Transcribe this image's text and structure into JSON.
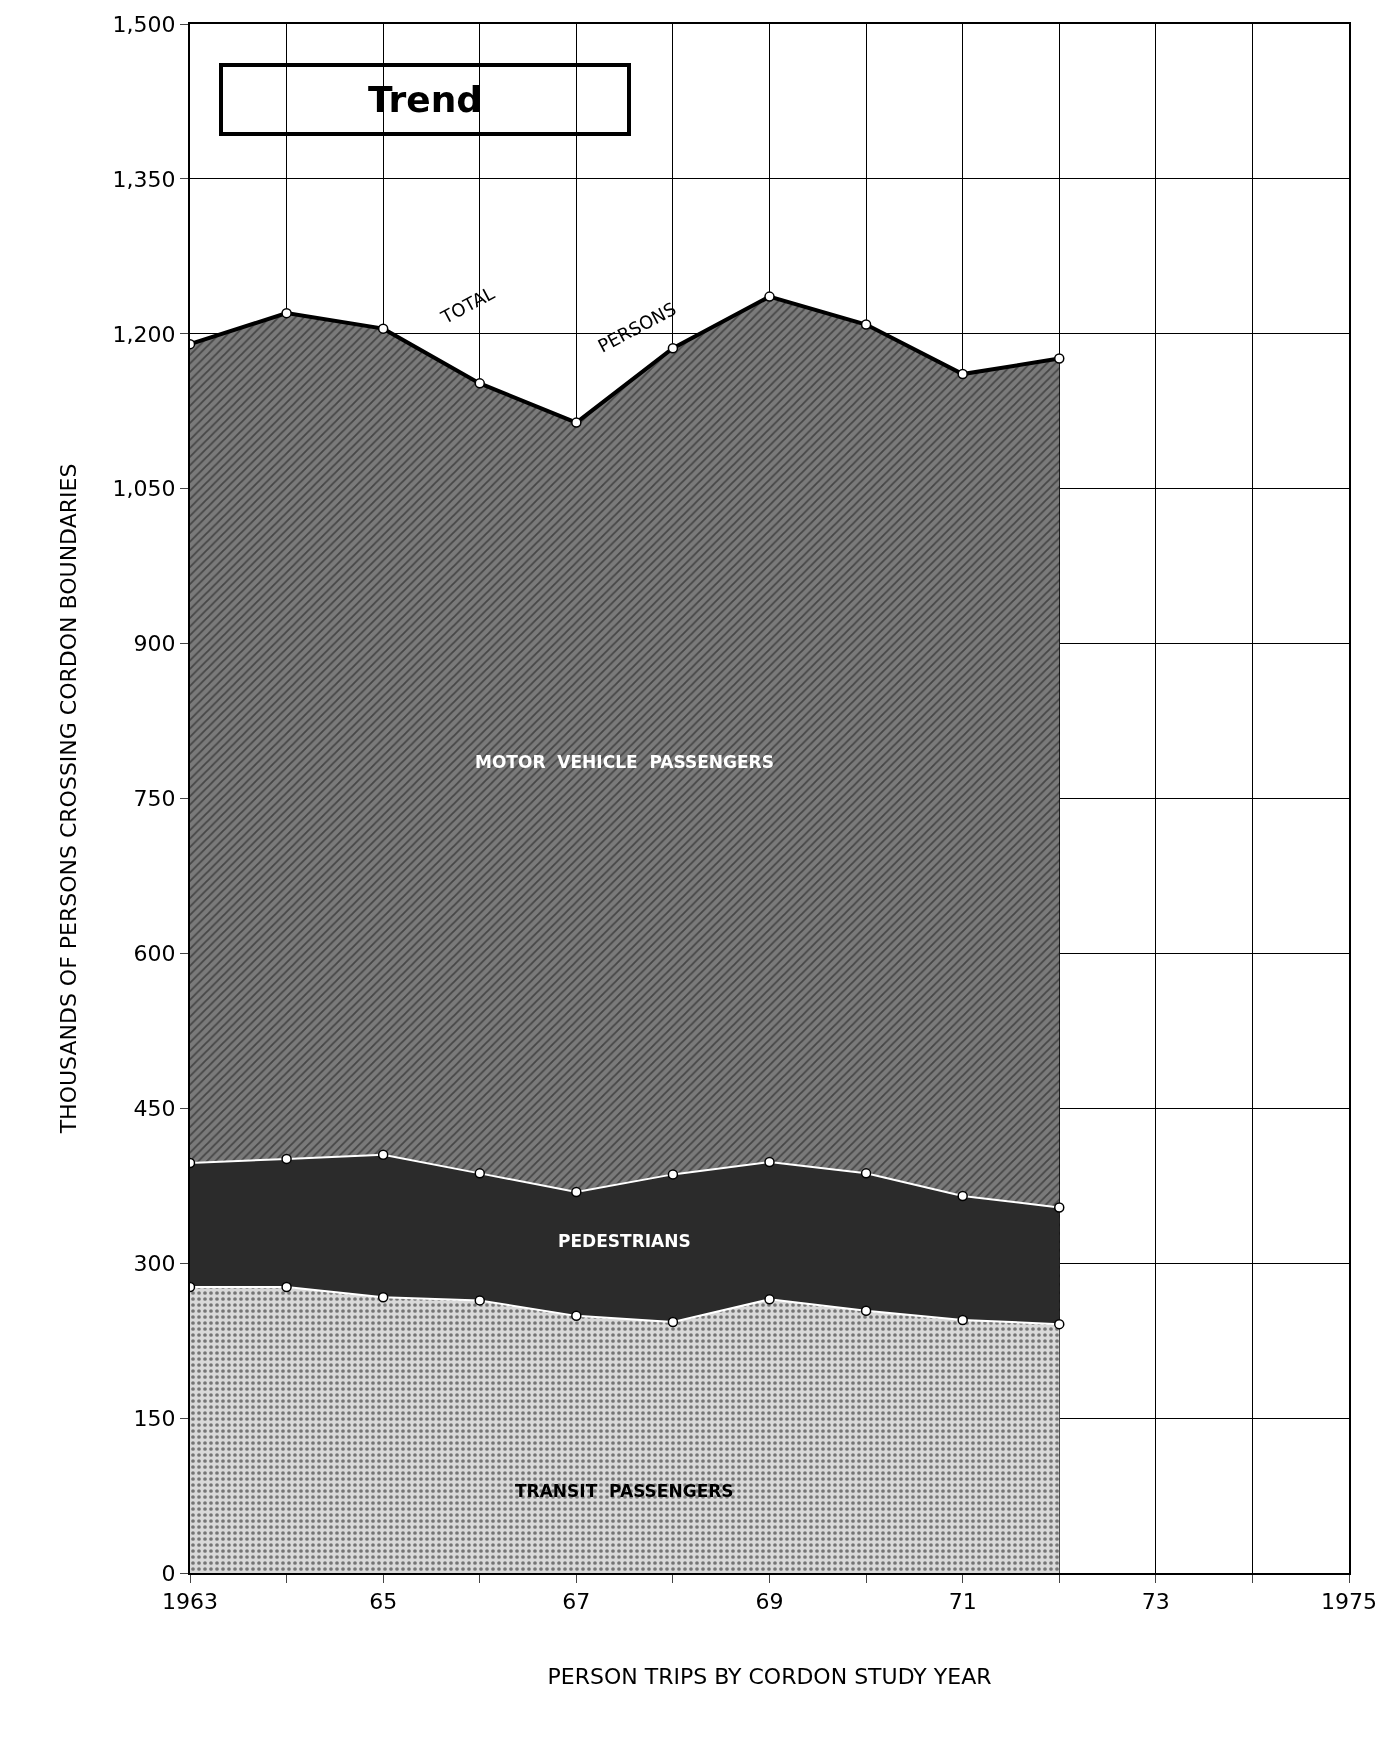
{
  "chart_data": {
    "type": "area",
    "title": "Trend",
    "xlabel": "PERSON TRIPS BY CORDON STUDY YEAR",
    "ylabel": "THOUSANDS OF PERSONS CROSSING CORDON BOUNDARIES",
    "x": [
      1963,
      1964,
      1965,
      1966,
      1967,
      1968,
      1969,
      1970,
      1971,
      1972
    ],
    "stacked": true,
    "series": [
      {
        "name": "TRANSIT PASSENGERS",
        "color": "#d9d9d9",
        "values": [
          277,
          277,
          267,
          264,
          249,
          243,
          265,
          254,
          245,
          241
        ]
      },
      {
        "name": "PEDESTRIANS",
        "color": "#2b2b2b",
        "values": [
          120,
          124,
          138,
          123,
          120,
          143,
          133,
          133,
          120,
          113
        ]
      },
      {
        "name": "MOTOR VEHICLE PASSENGERS",
        "color": "#7a7a7a",
        "values": [
          793,
          819,
          800,
          765,
          745,
          800,
          838,
          822,
          796,
          822
        ]
      }
    ],
    "annotations": [
      "TOTAL",
      "PERSONS"
    ],
    "xlim": [
      1963,
      1975
    ],
    "xticks": [
      1963,
      {
        "value": 1964,
        "label": null
      },
      {
        "value": 1965,
        "label": "65"
      },
      {
        "value": 1966,
        "label": null
      },
      {
        "value": 1967,
        "label": "67"
      },
      {
        "value": 1968,
        "label": null
      },
      {
        "value": 1969,
        "label": "69"
      },
      {
        "value": 1970,
        "label": null
      },
      {
        "value": 1971,
        "label": "71"
      },
      {
        "value": 1972,
        "label": null
      },
      {
        "value": 1973,
        "label": "73"
      },
      {
        "value": 1974,
        "label": null
      },
      1975
    ],
    "ylim": [
      0,
      1500
    ],
    "yticks": [
      0,
      150,
      300,
      450,
      600,
      750,
      900,
      {
        "value": 1050,
        "label": "1,050"
      },
      {
        "value": 1200,
        "label": "1,200"
      },
      {
        "value": 1350,
        "label": "1,350"
      },
      {
        "value": 1500,
        "label": "1,500"
      }
    ],
    "grid": true,
    "marker": "circle",
    "legend": false
  }
}
